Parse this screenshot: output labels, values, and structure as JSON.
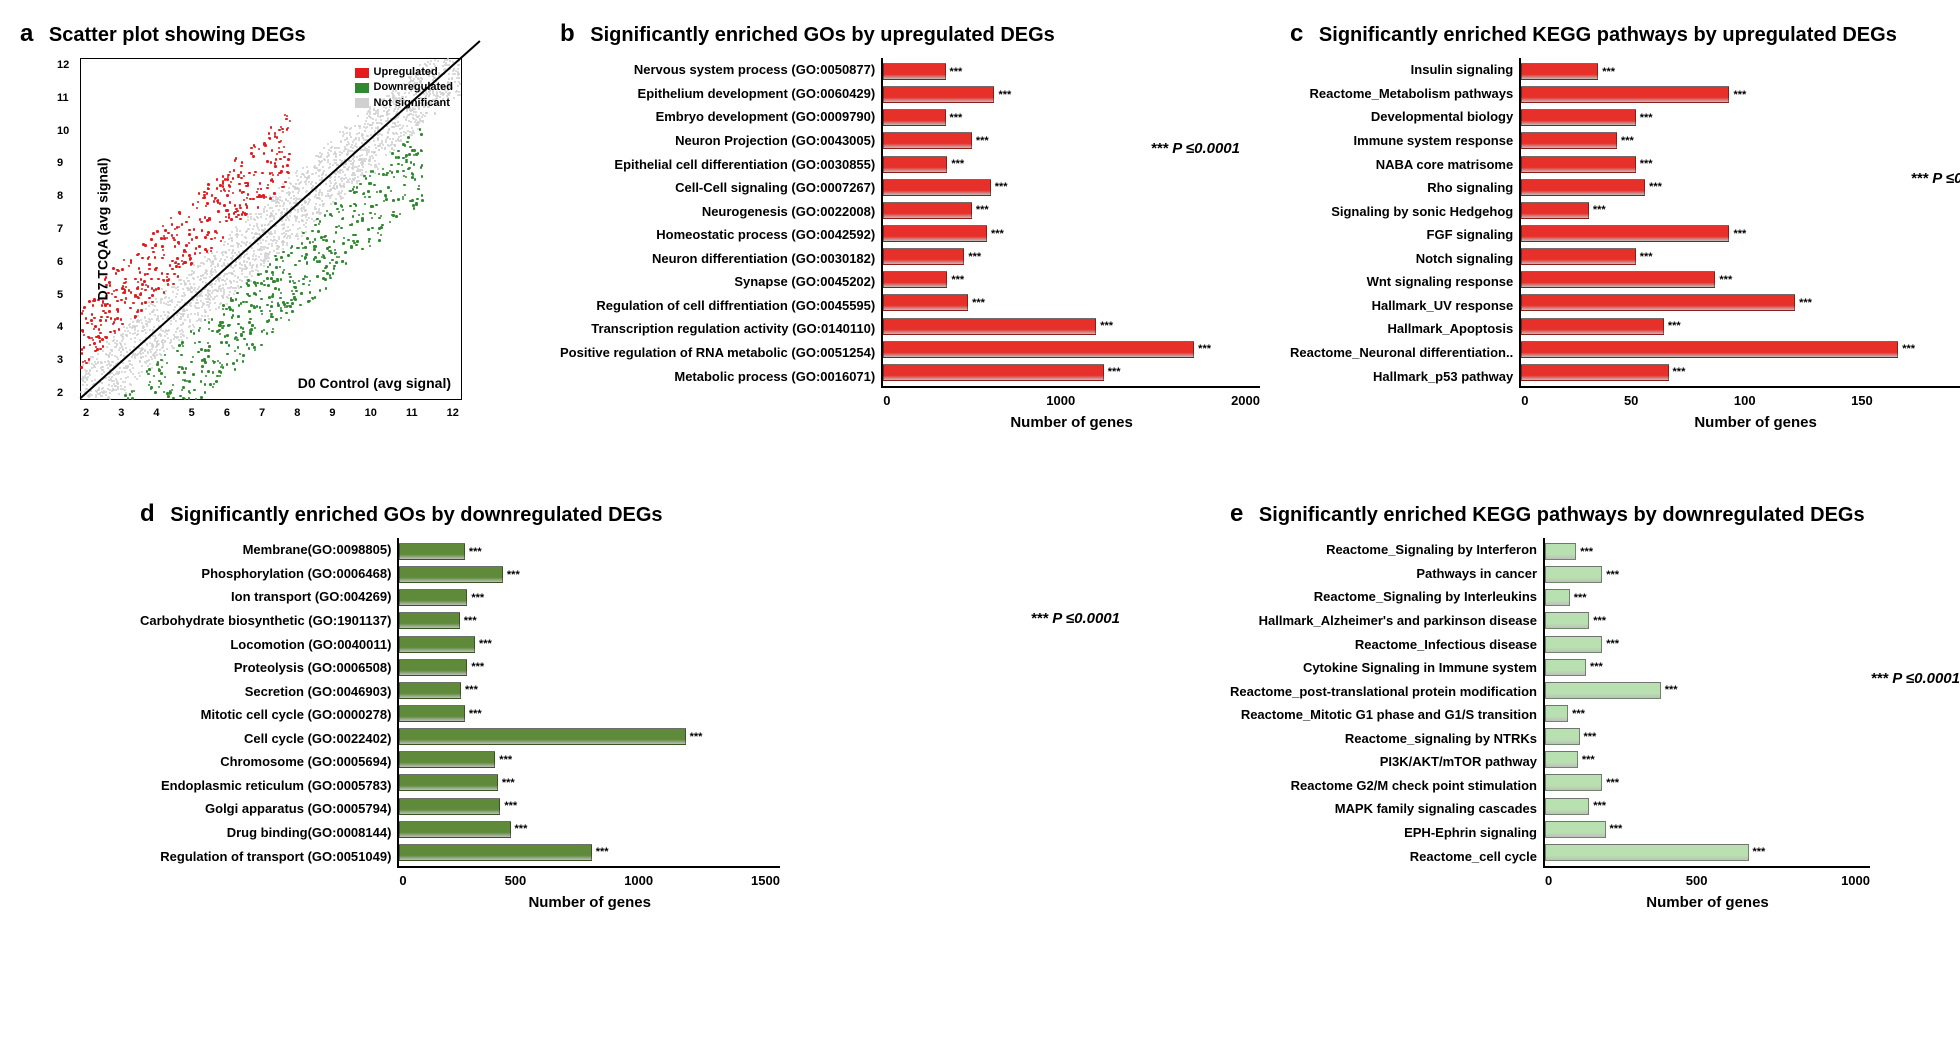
{
  "colors": {
    "upregulated": "#e41a1c",
    "downregulated": "#2f8a2f",
    "notsignificant": "#d0d0d0",
    "axis": "#000000",
    "bar_red": "#e8302a",
    "bar_olive": "#5f8a3a",
    "bar_lightgreen": "#b8e0b0",
    "background": "#ffffff"
  },
  "p_note": "*** P ≤0.0001",
  "panel_a": {
    "letter": "a",
    "title": "Scatter plot showing DEGs",
    "x_label": "D0 Control (avg signal)",
    "y_label": "D7 TCQA (avg signal)",
    "legend": [
      {
        "label": "Upregulated",
        "color": "#e41a1c"
      },
      {
        "label": "Downregulated",
        "color": "#2f8a2f"
      },
      {
        "label": "Not significant",
        "color": "#d0d0d0"
      }
    ],
    "axis_min": 2,
    "axis_max": 12,
    "ticks": [
      2,
      3,
      4,
      5,
      6,
      7,
      8,
      9,
      10,
      11,
      12
    ]
  },
  "panel_b": {
    "letter": "b",
    "title": "Significantly enriched GOs by upregulated DEGs",
    "bar_color": "#e8302a",
    "x_label": "Number of genes",
    "x_max": 2000,
    "x_ticks": [
      0,
      1000,
      2000
    ],
    "sig_mark": "***",
    "items": [
      {
        "label": "Nervous system process (GO:0050877)",
        "value": 320
      },
      {
        "label": "Epithelium development  (GO:0060429)",
        "value": 580
      },
      {
        "label": "Embryo development (GO:0009790)",
        "value": 320
      },
      {
        "label": "Neuron Projection (GO:0043005)",
        "value": 460
      },
      {
        "label": "Epithelial cell differentiation (GO:0030855)",
        "value": 330
      },
      {
        "label": "Cell-Cell signaling (GO:0007267)",
        "value": 560
      },
      {
        "label": "Neurogenesis (GO:0022008)",
        "value": 460
      },
      {
        "label": "Homeostatic process (GO:0042592)",
        "value": 540
      },
      {
        "label": "Neuron  differentiation (GO:0030182)",
        "value": 420
      },
      {
        "label": "Synapse (GO:0045202)",
        "value": 330
      },
      {
        "label": "Regulation of cell diffrentiation (GO:0045595)",
        "value": 440
      },
      {
        "label": "Transcription regulation activity (GO:0140110)",
        "value": 1120
      },
      {
        "label": "Positive regulation of RNA metabolic (GO:0051254)",
        "value": 1640
      },
      {
        "label": "Metabolic process (GO:0016071)",
        "value": 1160
      }
    ]
  },
  "panel_c": {
    "letter": "c",
    "title": "Significantly enriched KEGG pathways by upregulated DEGs",
    "bar_color": "#e8302a",
    "x_label": "Number of genes",
    "x_max": 200,
    "x_ticks": [
      0,
      50,
      100,
      150,
      200
    ],
    "sig_mark": "***",
    "items": [
      {
        "label": "Insulin signaling",
        "value": 32
      },
      {
        "label": "Reactome_Metabolism pathways",
        "value": 88
      },
      {
        "label": "Developmental biology",
        "value": 48
      },
      {
        "label": "Immune system response",
        "value": 40
      },
      {
        "label": "NABA core matrisome",
        "value": 48
      },
      {
        "label": "Rho signaling",
        "value": 52
      },
      {
        "label": "Signaling by sonic Hedgehog",
        "value": 28
      },
      {
        "label": "FGF signaling",
        "value": 88
      },
      {
        "label": "Notch signaling",
        "value": 48
      },
      {
        "label": "Wnt signaling response",
        "value": 82
      },
      {
        "label": "Hallmark_UV response",
        "value": 116
      },
      {
        "label": "Hallmark_Apoptosis",
        "value": 60
      },
      {
        "label": "Reactome_Neuronal differentiation..",
        "value": 160
      },
      {
        "label": "Hallmark_p53 pathway",
        "value": 62
      }
    ]
  },
  "panel_d": {
    "letter": "d",
    "title": "Significantly enriched GOs by downregulated DEGs",
    "bar_color": "#5f8a3a",
    "x_label": "Number of genes",
    "x_max": 1500,
    "x_ticks": [
      0,
      500,
      1000,
      1500
    ],
    "sig_mark": "***",
    "items": [
      {
        "label": "Membrane(GO:0098805)",
        "value": 250
      },
      {
        "label": "Phosphorylation (GO:0006468)",
        "value": 400
      },
      {
        "label": "Ion transport (GO:004269)",
        "value": 260
      },
      {
        "label": "Carbohydrate biosynthetic (GO:1901137)",
        "value": 230
      },
      {
        "label": "Locomotion (GO:0040011)",
        "value": 290
      },
      {
        "label": "Proteolysis (GO:0006508)",
        "value": 260
      },
      {
        "label": "Secretion (GO:0046903)",
        "value": 235
      },
      {
        "label": "Mitotic cell cycle (GO:0000278)",
        "value": 250
      },
      {
        "label": "Cell cycle (GO:0022402)",
        "value": 1120
      },
      {
        "label": "Chromosome (GO:0005694)",
        "value": 370
      },
      {
        "label": "Endoplasmic reticulum  (GO:0005783)",
        "value": 380
      },
      {
        "label": "Golgi apparatus  (GO:0005794)",
        "value": 390
      },
      {
        "label": "Drug binding(GO:0008144)",
        "value": 430
      },
      {
        "label": "Regulation of transport (GO:0051049)",
        "value": 750
      }
    ]
  },
  "panel_e": {
    "letter": "e",
    "title": "Significantly enriched KEGG pathways by downregulated DEGs",
    "bar_color": "#b8e0b0",
    "x_label": "Number of genes",
    "x_max": 1000,
    "x_ticks": [
      0,
      500,
      1000
    ],
    "sig_mark": "***",
    "items": [
      {
        "label": "Reactome_Signaling by Interferon",
        "value": 90
      },
      {
        "label": "Pathways in cancer",
        "value": 170
      },
      {
        "label": "Reactome_Signaling by Interleukins",
        "value": 70
      },
      {
        "label": "Hallmark_Alzheimer's and parkinson disease",
        "value": 130
      },
      {
        "label": "Reactome_Infectious disease",
        "value": 170
      },
      {
        "label": "Cytokine Signaling in Immune system",
        "value": 120
      },
      {
        "label": "Reactome_post-translational protein modification",
        "value": 350
      },
      {
        "label": "Reactome_Mitotic G1 phase and G1/S transition",
        "value": 65
      },
      {
        "label": "Reactome_signaling by NTRKs",
        "value": 100
      },
      {
        "label": "PI3K/AKT/mTOR pathway",
        "value": 95
      },
      {
        "label": "Reactome G2/M check point stimulation",
        "value": 170
      },
      {
        "label": "MAPK family signaling cascades",
        "value": 130
      },
      {
        "label": "EPH-Ephrin signaling",
        "value": 180
      },
      {
        "label": "Reactome_cell cycle",
        "value": 620
      }
    ]
  }
}
